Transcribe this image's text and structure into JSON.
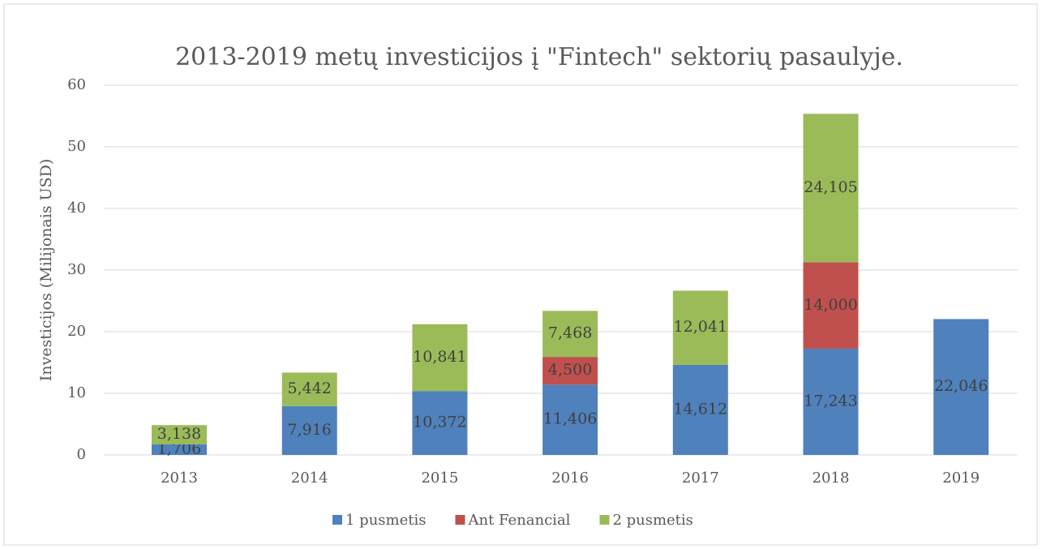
{
  "chart_data": {
    "type": "bar",
    "stacked": true,
    "title": "2013-2019 metų investicijos į \"Fintech\" sektorių pasaulyje.",
    "y_label": "Investicijos (Milijonais USD)",
    "categories": [
      "2013",
      "2014",
      "2015",
      "2016",
      "2017",
      "2018",
      "2019"
    ],
    "series": [
      {
        "name": "1 pusmetis",
        "color": "#4f81bd",
        "values": [
          1.706,
          7.916,
          10.372,
          11.406,
          14.612,
          17.243,
          22.046
        ],
        "value_labels": [
          "1,706",
          "7,916",
          "10,372",
          "11,406",
          "14,612",
          "17,243",
          "22,046"
        ]
      },
      {
        "name": "Ant Fenancial",
        "color": "#c0504d",
        "values": [
          null,
          null,
          null,
          4.5,
          null,
          14.0,
          null
        ],
        "value_labels": [
          null,
          null,
          null,
          "4,500",
          null,
          "14,000",
          null
        ]
      },
      {
        "name": "2 pusmetis",
        "color": "#9bbb59",
        "values": [
          3.138,
          5.442,
          10.841,
          7.468,
          12.041,
          24.105,
          null
        ],
        "value_labels": [
          "3,138",
          "5,442",
          "10,841",
          "7,468",
          "12,041",
          "24,105",
          null
        ]
      }
    ],
    "ylim": [
      0,
      60
    ],
    "yticks": [
      0,
      10,
      20,
      30,
      40,
      50,
      60
    ],
    "grid": true,
    "legend": "bottom"
  }
}
